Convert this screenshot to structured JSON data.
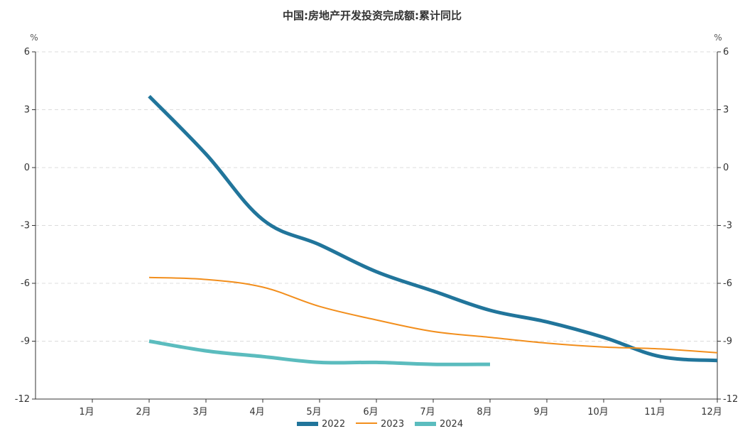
{
  "chart_data": {
    "type": "line",
    "title": "中国:房地产开发投资完成额:累计同比",
    "y_unit_left": "%",
    "y_unit_right": "%",
    "categories": [
      "1月",
      "2月",
      "3月",
      "4月",
      "5月",
      "6月",
      "7月",
      "8月",
      "9月",
      "10月",
      "11月",
      "12月"
    ],
    "ylim": [
      -12,
      6
    ],
    "yticks": [
      6,
      3,
      0,
      -3,
      -6,
      -9,
      -12
    ],
    "grid": true,
    "legend_position": "bottom",
    "series": [
      {
        "name": "2022",
        "color": "#21759b",
        "width": 5,
        "values": [
          null,
          3.7,
          0.7,
          -2.7,
          -4.0,
          -5.4,
          -6.4,
          -7.4,
          -8.0,
          -8.8,
          -9.8,
          -10.0
        ]
      },
      {
        "name": "2023",
        "color": "#f28e1c",
        "width": 2,
        "values": [
          null,
          -5.7,
          -5.8,
          -6.2,
          -7.2,
          -7.9,
          -8.5,
          -8.8,
          -9.1,
          -9.3,
          -9.4,
          -9.6
        ]
      },
      {
        "name": "2024",
        "color": "#5bbcbe",
        "width": 5,
        "values": [
          null,
          -9.0,
          -9.5,
          -9.8,
          -10.1,
          -10.1,
          -10.2,
          -10.2,
          null,
          null,
          null,
          null
        ]
      }
    ]
  }
}
